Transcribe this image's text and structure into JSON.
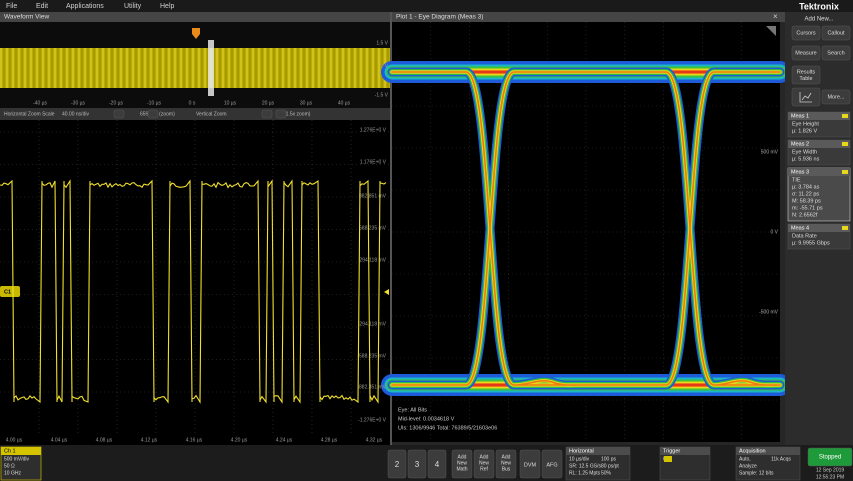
{
  "menu": [
    "File",
    "Edit",
    "Applications",
    "Utility",
    "Help"
  ],
  "brand": {
    "logo": "Tektronix",
    "add_new": "Add New..."
  },
  "waveform_view": {
    "title": "Waveform View",
    "overview_ticks": [
      "-40 µs",
      "-30 µs",
      "-20 µs",
      "-10 µs",
      "0 s",
      "10 µs",
      "20 µs",
      "30 µs",
      "40 µs"
    ],
    "overview_levels": [
      "1.5 V",
      "0 V",
      "-1.5 V"
    ],
    "zoom_bar": [
      "Horizontal Zoom Scale",
      "40.00 ns/div",
      "659.8ns (zoom)",
      "Vertical Zoom",
      "(1.5x zoom)"
    ],
    "y_labels": [
      "1.276E+0 V",
      "1.176E+0 V",
      "882.851 mV",
      "588.235 mV",
      "294.118 mV",
      "-294.118 mV",
      "-588.235 mV",
      "-882.351 mV",
      "-1.276E+0 V"
    ],
    "channel_marker": "C1",
    "time_labels": [
      "4.00 µs",
      "4.04 µs",
      "4.08 µs",
      "4.12 µs",
      "4.16 µs",
      "4.20 µs",
      "4.24 µs",
      "4.28 µs",
      "4.32 µs"
    ]
  },
  "eye_plot": {
    "title": "Plot 1 - Eye Diagram (Meas 3)",
    "y_labels": [
      "500 mV",
      "0 V",
      "-500 mV"
    ],
    "info": [
      "Eye: All Bits",
      "Mid-level: 0.0034618 V",
      "UIs: 1306/9946   Total: 76389/5/21603e06"
    ]
  },
  "sidebar": {
    "buttons": [
      [
        "Cursors"
      ],
      [
        "Callout"
      ],
      [
        "Measure"
      ],
      [
        "Search"
      ],
      [
        "Results",
        "Table"
      ],
      [
        "More..."
      ]
    ],
    "measurements": [
      {
        "title": "Meas 1",
        "lines": [
          "Eye Height",
          "µ: 1.826 V"
        ]
      },
      {
        "title": "Meas 2",
        "lines": [
          "Eye Width",
          "µ: 5.936 ns"
        ]
      },
      {
        "title": "Meas 3",
        "lines": [
          "TIE",
          "µ: 3.784 as",
          "σ: 11.22 ps",
          "M: 58.39 ps",
          "m: -55.71 ps",
          "N: 2.6562f"
        ]
      },
      {
        "title": "Meas 4",
        "lines": [
          "Data Rate",
          "µ: 9.9955 Gbps"
        ]
      }
    ]
  },
  "bottom_bar": {
    "channel": {
      "title": "Ch 1",
      "lines": [
        "500 mV/div",
        "50 Ω",
        "10 GHz"
      ]
    },
    "channel_buttons": [
      "2",
      "3",
      "4"
    ],
    "add_buttons": [
      [
        "Add",
        "New",
        "Math"
      ],
      [
        "Add",
        "New",
        "Ref"
      ],
      [
        "Add",
        "New",
        "Bus"
      ]
    ],
    "tools": [
      "DVM",
      "AFG"
    ],
    "horizontal": {
      "title": "Horizontal",
      "lines": [
        "10 µs/div",
        "SR: 12.5 GS/s",
        "RL: 1.25 Mpts",
        "100 ps",
        "80 ps/pt",
        "50%"
      ]
    },
    "trigger": {
      "title": "Trigger",
      "lines": [
        "0 V"
      ]
    },
    "acquisition": {
      "title": "Acquisition",
      "lines": [
        "Auto,",
        "Analyze",
        "Sample: 12 bits",
        "11k Acqs"
      ]
    },
    "run_state": "Stopped",
    "date": "12 Sep 2019",
    "time": "12:55:23 PM"
  }
}
